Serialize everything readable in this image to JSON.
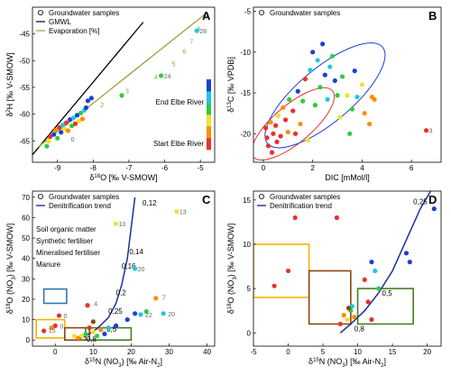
{
  "chart_data": [
    {
      "id": "A",
      "type": "scatter",
      "panel_label": "A",
      "xlabel": "δ18O [‰ V-SMOW]",
      "ylabel": "δ2H [‰ V-SMOW]",
      "xlim": [
        -9.7,
        -4.6
      ],
      "ylim": [
        -69,
        -40
      ],
      "xticks": [
        -9,
        -8,
        -7,
        -6,
        -5
      ],
      "yticks": [
        -65,
        -60,
        -55,
        -50,
        -45
      ],
      "legend": [
        "Groundwater samples",
        "GMWL",
        "Evaporation [%]"
      ],
      "legend_position": "top-left",
      "colorbar": {
        "top_label": "End Elbe River",
        "bottom_label": "Start Elbe River"
      },
      "gmwl": [
        [
          -9.7,
          -67.6
        ],
        [
          -6.6,
          -42.8
        ]
      ],
      "evaporation_line": [
        [
          -9.55,
          -66.2
        ],
        [
          -4.85,
          -41.2
        ]
      ],
      "evaporation_ticks": [
        {
          "x": -8.7,
          "y": -61.6,
          "label": "1"
        },
        {
          "x": -7.9,
          "y": -58.2,
          "label": "2"
        },
        {
          "x": -7.2,
          "y": -55.6,
          "label": "3"
        },
        {
          "x": -6.4,
          "y": -53.0,
          "label": "4"
        },
        {
          "x": -5.9,
          "y": -50.5,
          "label": "5"
        },
        {
          "x": -5.6,
          "y": -48.2,
          "label": "6"
        },
        {
          "x": -5.4,
          "y": -46.3,
          "label": "7"
        },
        {
          "x": -5.2,
          "y": -44.0,
          "label": "8"
        },
        {
          "x": -5.0,
          "y": -41.8,
          "label": "9"
        }
      ],
      "point_labels": [
        {
          "x": -8.7,
          "y": -64.6,
          "label": "0"
        },
        {
          "x": -6.1,
          "y": -52.8,
          "label": "24"
        },
        {
          "x": -5.1,
          "y": -44.4,
          "label": "28"
        }
      ],
      "points": [
        {
          "x": -9.3,
          "y": -66.0,
          "color": "#2ecc40"
        },
        {
          "x": -9.25,
          "y": -65.1,
          "color": "#f0e130"
        },
        {
          "x": -9.2,
          "y": -64.2,
          "color": "#e8322b"
        },
        {
          "x": -9.1,
          "y": -63.8,
          "color": "#1f3fd1"
        },
        {
          "x": -9.05,
          "y": -63.0,
          "color": "#ff8c00"
        },
        {
          "x": -9.0,
          "y": -64.5,
          "color": "#2ecc40"
        },
        {
          "x": -8.95,
          "y": -62.5,
          "color": "#e8322b"
        },
        {
          "x": -8.9,
          "y": -63.4,
          "color": "#1f3fd1"
        },
        {
          "x": -8.85,
          "y": -62.0,
          "color": "#23c4e8"
        },
        {
          "x": -8.8,
          "y": -62.8,
          "color": "#f0e130"
        },
        {
          "x": -8.75,
          "y": -61.6,
          "color": "#e8322b"
        },
        {
          "x": -8.7,
          "y": -63.1,
          "color": "#ff8c00"
        },
        {
          "x": -8.65,
          "y": -61.0,
          "color": "#1f3fd1"
        },
        {
          "x": -8.6,
          "y": -62.2,
          "color": "#2ecc40"
        },
        {
          "x": -8.55,
          "y": -60.7,
          "color": "#23c4e8"
        },
        {
          "x": -8.5,
          "y": -61.8,
          "color": "#e8322b"
        },
        {
          "x": -8.45,
          "y": -60.2,
          "color": "#1f3fd1"
        },
        {
          "x": -8.4,
          "y": -61.3,
          "color": "#f0e130"
        },
        {
          "x": -8.35,
          "y": -59.8,
          "color": "#2ecc40"
        },
        {
          "x": -8.3,
          "y": -60.9,
          "color": "#ff8c00"
        },
        {
          "x": -8.25,
          "y": -59.3,
          "color": "#23c4e8"
        },
        {
          "x": -8.2,
          "y": -58.8,
          "color": "#1f3fd1"
        },
        {
          "x": -8.15,
          "y": -57.5,
          "color": "#1f3fd1"
        },
        {
          "x": -8.05,
          "y": -57.0,
          "color": "#1f3fd1"
        },
        {
          "x": -7.2,
          "y": -56.5,
          "color": "#2ecc40"
        },
        {
          "x": -6.1,
          "y": -52.8,
          "color": "#2ecc40"
        },
        {
          "x": -5.1,
          "y": -44.4,
          "color": "#23c4e8"
        }
      ]
    },
    {
      "id": "B",
      "type": "scatter",
      "panel_label": "B",
      "xlabel": "DIC [mMol/l]",
      "ylabel": "δ13C [‰ VPDB]",
      "xlim": [
        -0.4,
        7.2
      ],
      "ylim": [
        -23.5,
        -4.5
      ],
      "xticks": [
        0,
        2,
        4,
        6
      ],
      "yticks": [
        -20,
        -15,
        -10,
        -5
      ],
      "legend": [
        "Groundwater samples"
      ],
      "legend_position": "top-left",
      "ellipses": [
        {
          "cx": 1.2,
          "cy": -18.8,
          "rx": 1.1,
          "ry": 4.2,
          "angle": -40,
          "color": "#e8322b"
        },
        {
          "cx": 2.5,
          "cy": -15.3,
          "rx": 1.6,
          "ry": 6.0,
          "angle": -40,
          "color": "#1f3fd1"
        }
      ],
      "point_labels": [
        {
          "x": 6.6,
          "y": -19.6,
          "label": "3"
        }
      ],
      "points": [
        {
          "x": 0.1,
          "y": -19.3,
          "color": "#e8322b"
        },
        {
          "x": 0.15,
          "y": -20.5,
          "color": "#e8322b"
        },
        {
          "x": 0.2,
          "y": -21.5,
          "color": "#e8322b"
        },
        {
          "x": 0.3,
          "y": -18.6,
          "color": "#ff8c00"
        },
        {
          "x": 0.35,
          "y": -22.3,
          "color": "#e8322b"
        },
        {
          "x": 0.4,
          "y": -20.0,
          "color": "#e8322b"
        },
        {
          "x": 0.5,
          "y": -19.0,
          "color": "#e8322b"
        },
        {
          "x": 0.55,
          "y": -21.0,
          "color": "#e8322b"
        },
        {
          "x": 0.6,
          "y": -17.8,
          "color": "#f0e130"
        },
        {
          "x": 0.7,
          "y": -20.3,
          "color": "#e8322b"
        },
        {
          "x": 0.8,
          "y": -16.8,
          "color": "#ff8c00"
        },
        {
          "x": 0.9,
          "y": -18.3,
          "color": "#e8322b"
        },
        {
          "x": 1.0,
          "y": -19.8,
          "color": "#ff8c00"
        },
        {
          "x": 1.05,
          "y": -15.8,
          "color": "#2ecc40"
        },
        {
          "x": 1.2,
          "y": -17.2,
          "color": "#e8322b"
        },
        {
          "x": 1.3,
          "y": -20.0,
          "color": "#e8322b"
        },
        {
          "x": 1.4,
          "y": -14.8,
          "color": "#1f3fd1"
        },
        {
          "x": 1.5,
          "y": -18.8,
          "color": "#ff8c00"
        },
        {
          "x": 1.6,
          "y": -16.0,
          "color": "#2ecc40"
        },
        {
          "x": 1.7,
          "y": -13.3,
          "color": "#e8322b"
        },
        {
          "x": 1.8,
          "y": -20.8,
          "color": "#f0e130"
        },
        {
          "x": 1.9,
          "y": -12.2,
          "color": "#23c4e8"
        },
        {
          "x": 2.0,
          "y": -10.0,
          "color": "#1f3fd1"
        },
        {
          "x": 2.1,
          "y": -16.5,
          "color": "#2ecc40"
        },
        {
          "x": 2.2,
          "y": -11.0,
          "color": "#23c4e8"
        },
        {
          "x": 2.3,
          "y": -14.3,
          "color": "#2ecc40"
        },
        {
          "x": 2.4,
          "y": -9.0,
          "color": "#1f3fd1"
        },
        {
          "x": 2.5,
          "y": -12.8,
          "color": "#1f3fd1"
        },
        {
          "x": 2.6,
          "y": -15.8,
          "color": "#23c4e8"
        },
        {
          "x": 2.7,
          "y": -11.8,
          "color": "#23c4e8"
        },
        {
          "x": 2.8,
          "y": -10.5,
          "color": "#2ecc40"
        },
        {
          "x": 2.9,
          "y": -13.5,
          "color": "#1f3fd1"
        },
        {
          "x": 3.0,
          "y": -15.3,
          "color": "#2ecc40"
        },
        {
          "x": 3.1,
          "y": -18.0,
          "color": "#f0e130"
        },
        {
          "x": 3.2,
          "y": -13.0,
          "color": "#2ecc40"
        },
        {
          "x": 3.4,
          "y": -15.3,
          "color": "#f0e130"
        },
        {
          "x": 3.5,
          "y": -20.0,
          "color": "#2ecc40"
        },
        {
          "x": 3.6,
          "y": -17.0,
          "color": "#2ecc40"
        },
        {
          "x": 3.7,
          "y": -12.3,
          "color": "#1f3fd1"
        },
        {
          "x": 3.8,
          "y": -15.5,
          "color": "#23c4e8"
        },
        {
          "x": 4.0,
          "y": -14.0,
          "color": "#f0e130"
        },
        {
          "x": 4.1,
          "y": -17.5,
          "color": "#ff8c00"
        },
        {
          "x": 4.3,
          "y": -18.8,
          "color": "#ff8c00"
        },
        {
          "x": 4.4,
          "y": -15.5,
          "color": "#ff8c00"
        },
        {
          "x": 4.5,
          "y": -15.8,
          "color": "#ff8c00"
        },
        {
          "x": 6.6,
          "y": -19.6,
          "color": "#e8322b"
        }
      ]
    },
    {
      "id": "C",
      "type": "scatter",
      "panel_label": "C",
      "xlabel": "δ15N (NO3) [‰ Air-N2]",
      "ylabel": "δ18O (NO3) [‰ V-SMOW]",
      "xlim": [
        -6,
        42
      ],
      "ylim": [
        -3,
        73
      ],
      "xticks": [
        0,
        10,
        20,
        30,
        40
      ],
      "yticks": [
        0,
        10,
        20,
        30,
        40,
        50,
        60,
        70
      ],
      "legend": [
        "Groundwater samples",
        "Denitrification trend"
      ],
      "legend_position": "top-left",
      "source_labels": [
        {
          "text": "Soil organic matter",
          "color": "#8b4513"
        },
        {
          "text": "Synthetic fertiliser",
          "color": "#2e75b6"
        },
        {
          "text": "Mineralised fertiliser",
          "color": "#f5b400"
        },
        {
          "text": "Manure",
          "color": "#4a7c23"
        }
      ],
      "boxes": [
        {
          "x0": -3,
          "x1": 3,
          "y0": 18,
          "y1": 25,
          "color": "#2e75b6"
        },
        {
          "x0": -5,
          "x1": 2.5,
          "y0": 1,
          "y1": 10,
          "color": "#f5b400"
        },
        {
          "x0": 2.5,
          "x1": 9,
          "y0": 0,
          "y1": 6,
          "color": "#8b4513"
        },
        {
          "x0": 8,
          "x1": 20,
          "y0": 0,
          "y1": 6,
          "color": "#4a7c23"
        }
      ],
      "curve": [
        [
          5.5,
          0
        ],
        [
          8,
          2
        ],
        [
          11,
          5.5
        ],
        [
          14,
          11
        ],
        [
          16,
          18
        ],
        [
          17.5,
          27
        ],
        [
          19,
          40
        ],
        [
          20,
          55
        ],
        [
          21,
          70
        ]
      ],
      "curve_labels": [
        {
          "x": 23,
          "y": 66,
          "text": "0,12"
        },
        {
          "x": 19.5,
          "y": 42,
          "text": "0,14"
        },
        {
          "x": 17.5,
          "y": 35,
          "text": "0,16"
        },
        {
          "x": 16,
          "y": 22,
          "text": "0,2"
        },
        {
          "x": 14,
          "y": 13,
          "text": "0,25"
        },
        {
          "x": 13.5,
          "y": 4,
          "text": "0,5"
        },
        {
          "x": 8.2,
          "y": -0.8,
          "text": "0,8"
        }
      ],
      "point_labels": [
        {
          "x": 16,
          "y": 57,
          "label": "10"
        },
        {
          "x": 32,
          "y": 63,
          "label": "13"
        },
        {
          "x": 21,
          "y": 35,
          "label": "20"
        },
        {
          "x": 27.5,
          "y": 21,
          "label": "7"
        },
        {
          "x": 9.5,
          "y": 18,
          "label": "4"
        },
        {
          "x": 23,
          "y": 12.5,
          "label": "22"
        },
        {
          "x": 29,
          "y": 13,
          "label": "20"
        },
        {
          "x": 1.5,
          "y": 12,
          "label": "0"
        },
        {
          "x": 0.5,
          "y": 7,
          "label": "0"
        },
        {
          "x": -2.5,
          "y": 5,
          "label": "15"
        }
      ],
      "points": [
        {
          "x": 16,
          "y": 57,
          "color": "#f0e130"
        },
        {
          "x": 32,
          "y": 63,
          "color": "#f0e130"
        },
        {
          "x": 21,
          "y": 35,
          "color": "#23c4e8"
        },
        {
          "x": 26.5,
          "y": 20.5,
          "color": "#ff8c00"
        },
        {
          "x": 8.5,
          "y": 17,
          "color": "#e8322b"
        },
        {
          "x": 22.5,
          "y": 12.5,
          "color": "#23c4e8"
        },
        {
          "x": 28.5,
          "y": 13,
          "color": "#23c4e8"
        },
        {
          "x": 24,
          "y": 14,
          "color": "#2ecc40"
        },
        {
          "x": 21,
          "y": 13,
          "color": "#1f3fd1"
        },
        {
          "x": 19,
          "y": 10,
          "color": "#1f3fd1"
        },
        {
          "x": 16,
          "y": 7,
          "color": "#1f3fd1"
        },
        {
          "x": 14,
          "y": 6,
          "color": "#23c4e8"
        },
        {
          "x": 12,
          "y": 5,
          "color": "#ff8c00"
        },
        {
          "x": 10,
          "y": 4,
          "color": "#f0e130"
        },
        {
          "x": 9,
          "y": 6,
          "color": "#e8322b"
        },
        {
          "x": 8,
          "y": 3,
          "color": "#2ecc40"
        },
        {
          "x": 7,
          "y": 2,
          "color": "#f0e130"
        },
        {
          "x": 6,
          "y": 1,
          "color": "#ff8c00"
        },
        {
          "x": 5,
          "y": 2,
          "color": "#f0e130"
        },
        {
          "x": 10,
          "y": 9,
          "color": "#8b4513"
        },
        {
          "x": 11,
          "y": 2,
          "color": "#2ecc40"
        },
        {
          "x": 13,
          "y": 3,
          "color": "#1f3fd1"
        },
        {
          "x": 1,
          "y": 12,
          "color": "#e8322b"
        },
        {
          "x": 0,
          "y": 7,
          "color": "#e8322b"
        },
        {
          "x": -3,
          "y": 4.5,
          "color": "#e8322b"
        },
        {
          "x": -1,
          "y": 6,
          "color": "#ff8c00"
        }
      ]
    },
    {
      "id": "D",
      "type": "scatter",
      "panel_label": "D",
      "xlabel": "δ15N (NO3) [‰ Air-N2]",
      "ylabel": "δ18O (NO3) [‰ V-SMOW]",
      "xlim": [
        -5,
        22
      ],
      "ylim": [
        -1.5,
        16
      ],
      "xticks": [
        -5,
        0,
        5,
        10,
        15,
        20
      ],
      "yticks": [
        0,
        5,
        10,
        15
      ],
      "legend": [
        "Groundwater samples",
        "Denitrification trend"
      ],
      "legend_position": "top-left",
      "boxes": [
        {
          "x0": -5,
          "x1": 3,
          "y0": 4,
          "y1": 10,
          "color": "#f5b400"
        },
        {
          "x0": 3,
          "x1": 9,
          "y0": 1,
          "y1": 7,
          "color": "#8b4513"
        },
        {
          "x0": 10,
          "x1": 18,
          "y0": 1,
          "y1": 5,
          "color": "#4a7c23"
        }
      ],
      "curve": [
        [
          7.5,
          0
        ],
        [
          9,
          1
        ],
        [
          11,
          2.5
        ],
        [
          13,
          4.5
        ],
        [
          15,
          7
        ],
        [
          17,
          10.5
        ],
        [
          19,
          14
        ],
        [
          20.5,
          16
        ]
      ],
      "curve_labels": [
        {
          "x": 18,
          "y": 14.5,
          "text": "0,25"
        },
        {
          "x": 13.5,
          "y": 4.2,
          "text": "0,5"
        },
        {
          "x": 9.5,
          "y": 0.2,
          "text": "0,8"
        }
      ],
      "point_labels": [],
      "points": [
        {
          "x": -2,
          "y": 5.3,
          "color": "#e8322b"
        },
        {
          "x": 0,
          "y": 7,
          "color": "#e8322b"
        },
        {
          "x": 1,
          "y": 13,
          "color": "#e8322b"
        },
        {
          "x": 7.5,
          "y": 1,
          "color": "#e8322b"
        },
        {
          "x": 8,
          "y": 2,
          "color": "#ff8c00"
        },
        {
          "x": 8.5,
          "y": 1.5,
          "color": "#f0e130"
        },
        {
          "x": 9,
          "y": 2.5,
          "color": "#2ecc40"
        },
        {
          "x": 9.2,
          "y": 3,
          "color": "#23c4e8"
        },
        {
          "x": 9.5,
          "y": 1.8,
          "color": "#ff8c00"
        },
        {
          "x": 8.7,
          "y": 2.8,
          "color": "#8b4513"
        },
        {
          "x": 7,
          "y": 13,
          "color": "#e8322b"
        },
        {
          "x": 11,
          "y": 6,
          "color": "#e8322b"
        },
        {
          "x": 11.5,
          "y": 3.5,
          "color": "#e8322b"
        },
        {
          "x": 12,
          "y": 1.5,
          "color": "#e8322b"
        },
        {
          "x": 12,
          "y": 8,
          "color": "#1f3fd1"
        },
        {
          "x": 12.5,
          "y": 7,
          "color": "#23c4e8"
        },
        {
          "x": 13,
          "y": 5,
          "color": "#2ecc40"
        },
        {
          "x": 17,
          "y": 9,
          "color": "#1f3fd1"
        },
        {
          "x": 17.5,
          "y": 8,
          "color": "#1f3fd1"
        },
        {
          "x": 21,
          "y": 14,
          "color": "#1f3fd1"
        }
      ]
    }
  ]
}
